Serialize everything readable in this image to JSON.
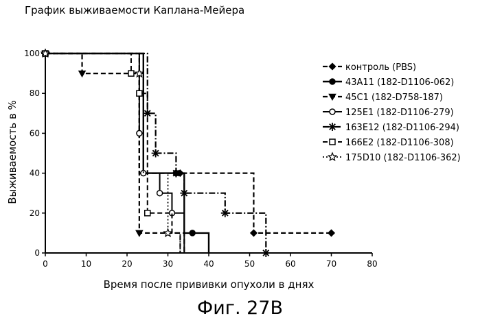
{
  "figure_title": "График выживаемости Каплана-Мейера",
  "figure_caption": "Фиг. 27В",
  "chart_data": {
    "type": "line",
    "subtype": "step",
    "title": "График выживаемости Каплана-Мейера",
    "xlabel": "Время после прививки опухоли в днях",
    "ylabel": "Выживаемость в %",
    "xlim": [
      0,
      80
    ],
    "ylim": [
      0,
      100
    ],
    "xticks": [
      0,
      10,
      20,
      30,
      40,
      50,
      60,
      70,
      80
    ],
    "yticks": [
      0,
      20,
      40,
      60,
      80,
      100
    ],
    "xtick_labels": [
      "0",
      "10",
      "20",
      "30",
      "40",
      "50",
      "60",
      "70",
      "80"
    ],
    "ytick_labels": [
      "0",
      "20",
      "40",
      "60",
      "80",
      "100"
    ],
    "grid": false,
    "legend_position": "right",
    "series": [
      {
        "name": "контроль (PBS)",
        "marker": "diamond",
        "dash": "dash",
        "width": 2.2,
        "x": [
          0,
          23,
          33,
          51,
          70
        ],
        "y": [
          100,
          40,
          40,
          10,
          10
        ],
        "markers_x": [
          33,
          51,
          70
        ]
      },
      {
        "name": "43A11 (182-D1106-062)",
        "marker": "circle",
        "dash": "solid",
        "width": 2.4,
        "x": [
          0,
          24,
          32,
          34,
          36,
          40
        ],
        "y": [
          100,
          40,
          40,
          10,
          10,
          0
        ],
        "markers_x": [
          32,
          36
        ]
      },
      {
        "name": "45C1 (182-D758-187)",
        "marker": "triangle-down",
        "dash": "dash",
        "width": 2.2,
        "x": [
          0,
          9,
          23,
          29,
          34
        ],
        "y": [
          100,
          90,
          10,
          10,
          0
        ],
        "markers_x": [
          9,
          23
        ]
      },
      {
        "name": "125E1 (182-D1106-279)",
        "marker": "circle-open",
        "dash": "solid",
        "width": 2.0,
        "x": [
          0,
          23,
          24,
          28,
          31,
          34
        ],
        "y": [
          100,
          60,
          40,
          30,
          20,
          0
        ],
        "markers_x": [
          23,
          24,
          28,
          31
        ]
      },
      {
        "name": "163E12 (182-D1106-294)",
        "marker": "asterisk",
        "dash": "dashdot",
        "width": 2.2,
        "x": [
          0,
          25,
          27,
          32,
          34,
          44,
          54
        ],
        "y": [
          100,
          70,
          50,
          40,
          30,
          20,
          0
        ],
        "markers_x": [
          25,
          27,
          32,
          34,
          44,
          54
        ]
      },
      {
        "name": "166E2 (182-D1106-308)",
        "marker": "square-open",
        "dash": "dash",
        "width": 2.0,
        "x": [
          0,
          21,
          23,
          25,
          31,
          33
        ],
        "y": [
          100,
          90,
          80,
          20,
          10,
          0
        ],
        "markers_x": [
          21,
          23,
          25
        ]
      },
      {
        "name": "175D10 (182-D1106-362)",
        "marker": "star-open",
        "dash": "dot",
        "width": 1.8,
        "x": [
          0,
          23,
          24,
          30,
          33
        ],
        "y": [
          100,
          90,
          40,
          10,
          0
        ],
        "markers_x": [
          23,
          30
        ]
      }
    ]
  }
}
